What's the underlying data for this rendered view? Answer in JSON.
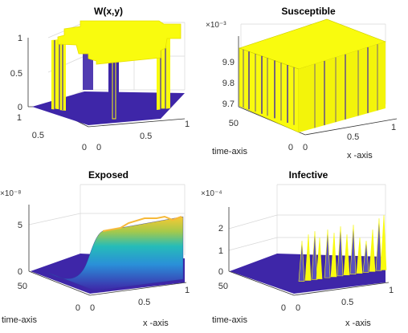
{
  "chart_data": [
    {
      "type": "surface",
      "title": "W(x,y)",
      "xlabel": "",
      "ylabel": "",
      "xticks": [
        "0",
        "0.5",
        "1"
      ],
      "yticks": [
        "0",
        "0.5",
        "1"
      ],
      "zticks": [
        "0",
        "0.5",
        "1"
      ],
      "exponent": "",
      "zlim": [
        0,
        1
      ],
      "colors": {
        "high": "#f9fb0e",
        "low": "#3e26a8"
      }
    },
    {
      "type": "surface",
      "title": "Susceptible",
      "xlabel": "x -axis",
      "ylabel": "time-axis",
      "xticks": [
        "0",
        "0.5",
        "1"
      ],
      "yticks": [
        "0",
        "50"
      ],
      "zticks": [
        "9.7",
        "9.8",
        "9.9"
      ],
      "exponent": "×10⁻³",
      "zlim": [
        9.7,
        9.95
      ],
      "colors": {
        "high": "#f9fb0e",
        "low": "#3e26a8"
      }
    },
    {
      "type": "surface",
      "title": "Exposed",
      "xlabel": "x -axis",
      "ylabel": "time-axis",
      "xticks": [
        "0",
        "0.5",
        "1"
      ],
      "yticks": [
        "0",
        "50"
      ],
      "zticks": [
        "0",
        "5"
      ],
      "exponent": "×10⁻⁸",
      "zlim": [
        0,
        6
      ],
      "colors": {
        "high": "#f9c932",
        "mid": "#26bcb8",
        "low": "#3e26a8"
      }
    },
    {
      "type": "surface",
      "title": "Infective",
      "xlabel": "x -axis",
      "ylabel": "time-axis",
      "xticks": [
        "0",
        "0.5",
        "1"
      ],
      "yticks": [
        "0",
        "50"
      ],
      "zticks": [
        "0",
        "1",
        "2"
      ],
      "exponent": "×10⁻⁴",
      "zlim": [
        0,
        2.6
      ],
      "colors": {
        "high": "#f9fb0e",
        "low": "#3e26a8"
      }
    }
  ]
}
